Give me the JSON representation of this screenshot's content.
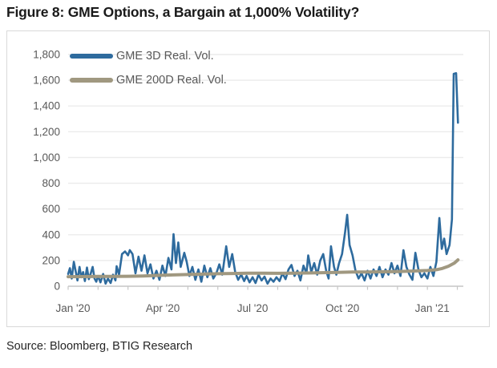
{
  "figure_title": "Figure 8: GME Options, a Bargain at 1,000% Volatility?",
  "source_text": "Source: Bloomberg, BTIG Research",
  "colors": {
    "series_3d": "#2E6B9E",
    "series_200d": "#A09880",
    "gridline": "#ebebeb",
    "axis_line": "#c6c6c6",
    "tick_text": "#595959",
    "frame_border": "#d9d9d9",
    "title_text": "#1a1a1a",
    "source_text": "#262626"
  },
  "chart_data": {
    "type": "line",
    "title": "",
    "xlabel": "",
    "ylabel": "",
    "x_unit": "months since Jan 2020",
    "xlim": [
      0,
      13.2
    ],
    "ylim": [
      0,
      1800
    ],
    "grid": "horizontal",
    "legend_position": "top-left",
    "y_ticks": [
      {
        "value": 0,
        "label": "0"
      },
      {
        "value": 200,
        "label": "200"
      },
      {
        "value": 400,
        "label": "400"
      },
      {
        "value": 600,
        "label": "600"
      },
      {
        "value": 800,
        "label": "800"
      },
      {
        "value": 1000,
        "label": "1,000"
      },
      {
        "value": 1200,
        "label": "1,200"
      },
      {
        "value": 1400,
        "label": "1,400"
      },
      {
        "value": 1600,
        "label": "1,600"
      },
      {
        "value": 1800,
        "label": "1,800"
      }
    ],
    "x_ticks": [
      {
        "value": 0,
        "label": "Jan '20"
      },
      {
        "value": 3,
        "label": "Apr '20"
      },
      {
        "value": 6,
        "label": "Jul '20"
      },
      {
        "value": 9,
        "label": "Oct '20"
      },
      {
        "value": 12,
        "label": "Jan '21"
      }
    ],
    "minor_x_ticks": [
      0,
      1,
      2,
      3,
      4,
      5,
      6,
      7,
      8,
      9,
      10,
      11,
      12,
      13
    ],
    "series": [
      {
        "name": "GME 3D Real. Vol.",
        "color": "#2E6B9E",
        "stroke_width": 2.6,
        "points": [
          [
            0.0,
            95
          ],
          [
            0.06,
            140
          ],
          [
            0.12,
            60
          ],
          [
            0.19,
            190
          ],
          [
            0.25,
            120
          ],
          [
            0.31,
            45
          ],
          [
            0.38,
            150
          ],
          [
            0.44,
            70
          ],
          [
            0.5,
            110
          ],
          [
            0.56,
            40
          ],
          [
            0.63,
            145
          ],
          [
            0.69,
            55
          ],
          [
            0.75,
            95
          ],
          [
            0.82,
            150
          ],
          [
            0.88,
            60
          ],
          [
            0.94,
            35
          ],
          [
            1.0,
            80
          ],
          [
            1.08,
            30
          ],
          [
            1.17,
            95
          ],
          [
            1.25,
            20
          ],
          [
            1.33,
            60
          ],
          [
            1.42,
            25
          ],
          [
            1.5,
            90
          ],
          [
            1.58,
            45
          ],
          [
            1.62,
            155
          ],
          [
            1.7,
            90
          ],
          [
            1.8,
            250
          ],
          [
            1.9,
            270
          ],
          [
            2.0,
            240
          ],
          [
            2.06,
            280
          ],
          [
            2.15,
            250
          ],
          [
            2.25,
            100
          ],
          [
            2.35,
            230
          ],
          [
            2.45,
            120
          ],
          [
            2.55,
            240
          ],
          [
            2.65,
            100
          ],
          [
            2.75,
            170
          ],
          [
            2.85,
            60
          ],
          [
            2.95,
            120
          ],
          [
            3.05,
            50
          ],
          [
            3.15,
            160
          ],
          [
            3.25,
            80
          ],
          [
            3.35,
            220
          ],
          [
            3.45,
            130
          ],
          [
            3.52,
            405
          ],
          [
            3.6,
            180
          ],
          [
            3.68,
            340
          ],
          [
            3.76,
            150
          ],
          [
            3.88,
            260
          ],
          [
            3.96,
            190
          ],
          [
            4.05,
            80
          ],
          [
            4.15,
            150
          ],
          [
            4.25,
            50
          ],
          [
            4.35,
            130
          ],
          [
            4.45,
            35
          ],
          [
            4.55,
            160
          ],
          [
            4.65,
            70
          ],
          [
            4.75,
            140
          ],
          [
            4.85,
            60
          ],
          [
            4.95,
            100
          ],
          [
            5.05,
            170
          ],
          [
            5.15,
            90
          ],
          [
            5.28,
            310
          ],
          [
            5.38,
            150
          ],
          [
            5.48,
            250
          ],
          [
            5.58,
            110
          ],
          [
            5.68,
            50
          ],
          [
            5.78,
            90
          ],
          [
            5.88,
            40
          ],
          [
            5.96,
            80
          ],
          [
            6.06,
            30
          ],
          [
            6.16,
            70
          ],
          [
            6.26,
            25
          ],
          [
            6.36,
            90
          ],
          [
            6.46,
            45
          ],
          [
            6.56,
            75
          ],
          [
            6.66,
            20
          ],
          [
            6.76,
            60
          ],
          [
            6.86,
            35
          ],
          [
            6.96,
            70
          ],
          [
            7.06,
            40
          ],
          [
            7.16,
            100
          ],
          [
            7.26,
            55
          ],
          [
            7.36,
            130
          ],
          [
            7.46,
            165
          ],
          [
            7.56,
            80
          ],
          [
            7.66,
            120
          ],
          [
            7.76,
            45
          ],
          [
            7.86,
            160
          ],
          [
            7.96,
            100
          ],
          [
            8.02,
            240
          ],
          [
            8.12,
            110
          ],
          [
            8.22,
            180
          ],
          [
            8.32,
            90
          ],
          [
            8.42,
            200
          ],
          [
            8.52,
            250
          ],
          [
            8.62,
            120
          ],
          [
            8.7,
            60
          ],
          [
            8.78,
            310
          ],
          [
            8.88,
            150
          ],
          [
            8.96,
            90
          ],
          [
            9.05,
            180
          ],
          [
            9.15,
            250
          ],
          [
            9.25,
            420
          ],
          [
            9.32,
            555
          ],
          [
            9.4,
            320
          ],
          [
            9.5,
            240
          ],
          [
            9.6,
            120
          ],
          [
            9.7,
            60
          ],
          [
            9.8,
            100
          ],
          [
            9.9,
            45
          ],
          [
            10.0,
            120
          ],
          [
            10.1,
            60
          ],
          [
            10.2,
            130
          ],
          [
            10.3,
            80
          ],
          [
            10.4,
            150
          ],
          [
            10.5,
            70
          ],
          [
            10.6,
            130
          ],
          [
            10.7,
            90
          ],
          [
            10.8,
            180
          ],
          [
            10.9,
            100
          ],
          [
            11.0,
            160
          ],
          [
            11.1,
            80
          ],
          [
            11.2,
            280
          ],
          [
            11.3,
            150
          ],
          [
            11.4,
            90
          ],
          [
            11.5,
            50
          ],
          [
            11.6,
            260
          ],
          [
            11.7,
            130
          ],
          [
            11.8,
            70
          ],
          [
            11.9,
            100
          ],
          [
            12.0,
            60
          ],
          [
            12.1,
            150
          ],
          [
            12.2,
            80
          ],
          [
            12.3,
            190
          ],
          [
            12.4,
            530
          ],
          [
            12.48,
            290
          ],
          [
            12.56,
            370
          ],
          [
            12.64,
            250
          ],
          [
            12.74,
            320
          ],
          [
            12.82,
            520
          ],
          [
            12.88,
            1650
          ],
          [
            12.96,
            1655
          ],
          [
            13.02,
            1270
          ]
        ]
      },
      {
        "name": "GME 200D Real. Vol.",
        "color": "#A09880",
        "stroke_width": 4,
        "points": [
          [
            0,
            74
          ],
          [
            0.5,
            75
          ],
          [
            1,
            76
          ],
          [
            1.5,
            76
          ],
          [
            2,
            77
          ],
          [
            2.5,
            80
          ],
          [
            3,
            84
          ],
          [
            3.5,
            88
          ],
          [
            4,
            91
          ],
          [
            4.5,
            94
          ],
          [
            5,
            97
          ],
          [
            5.5,
            99
          ],
          [
            6,
            101
          ],
          [
            6.5,
            101
          ],
          [
            7,
            100
          ],
          [
            7.5,
            101
          ],
          [
            8,
            103
          ],
          [
            8.5,
            105
          ],
          [
            9,
            108
          ],
          [
            9.5,
            110
          ],
          [
            10,
            111
          ],
          [
            10.5,
            112
          ],
          [
            11,
            114
          ],
          [
            11.5,
            118
          ],
          [
            12,
            122
          ],
          [
            12.3,
            128
          ],
          [
            12.5,
            138
          ],
          [
            12.7,
            155
          ],
          [
            12.9,
            180
          ],
          [
            13.02,
            205
          ]
        ]
      }
    ]
  }
}
